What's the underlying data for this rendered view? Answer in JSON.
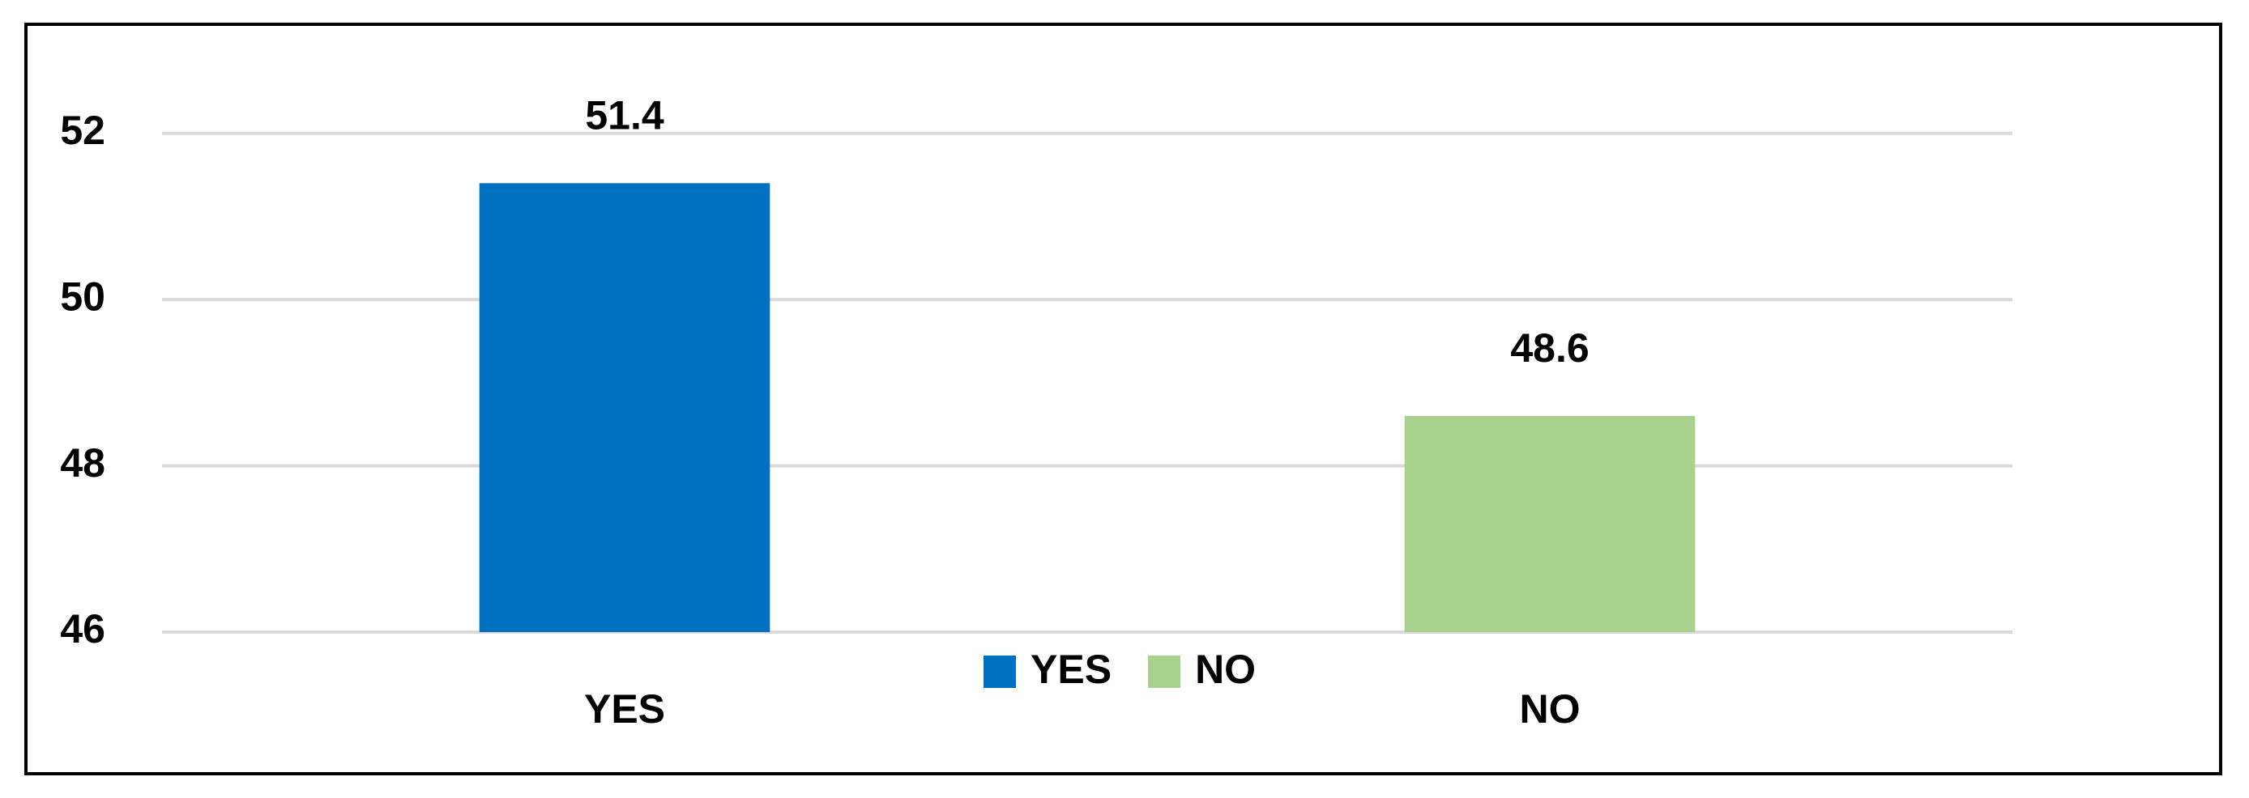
{
  "chart_data": {
    "type": "bar",
    "categories": [
      "YES",
      "NO"
    ],
    "values": [
      51.4,
      48.6
    ],
    "colors": [
      "#0070c0",
      "#a9d18e"
    ],
    "ylim": [
      46,
      53
    ],
    "yticks": [
      46,
      48,
      50,
      52
    ],
    "grid": true,
    "legend": "bottom"
  }
}
